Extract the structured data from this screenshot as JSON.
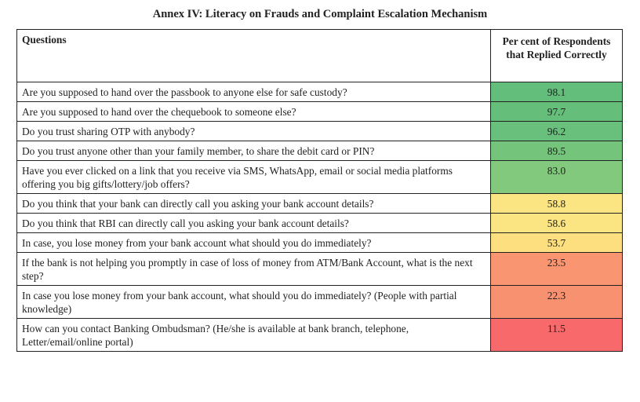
{
  "title": "Annex IV: Literacy on Frauds and Complaint Escalation Mechanism",
  "headers": {
    "question": "Questions",
    "percent": "Per cent of Respondents that Replied Correctly"
  },
  "rows": [
    {
      "q": "Are you supposed to hand over the passbook to anyone else for safe custody?",
      "v": "98.1",
      "color": "#63be7b"
    },
    {
      "q": "Are you supposed to hand over the chequebook to someone else?",
      "v": "97.7",
      "color": "#65bf7b"
    },
    {
      "q": "Do you trust sharing OTP with anybody?",
      "v": "96.2",
      "color": "#68c07c"
    },
    {
      "q": "Do you trust anyone other than your family member, to share the debit card or PIN?",
      "v": "89.5",
      "color": "#74c47c"
    },
    {
      "q": "Have you ever clicked on a link that you receive via SMS, WhatsApp, email or social media platforms offering you big gifts/lottery/job offers?",
      "v": "83.0",
      "color": "#82c87d"
    },
    {
      "q": "Do you think that your bank can directly call you asking your bank account details?",
      "v": "58.8",
      "color": "#fbe582"
    },
    {
      "q": "Do you think that RBI can directly call you asking your bank account details?",
      "v": "58.6",
      "color": "#fbe482"
    },
    {
      "q": "In case, you lose money from your bank account what should you do immediately?",
      "v": "53.7",
      "color": "#fddf80"
    },
    {
      "q": "If the bank is not helping you promptly in case of loss of money from ATM/Bank Account, what is the next step?",
      "v": "23.5",
      "color": "#f99570"
    },
    {
      "q": "In case you lose money from your bank account, what should you do immediately? (People with partial knowledge)",
      "v": "22.3",
      "color": "#f8916f"
    },
    {
      "q": "How can you contact Banking Ombudsman? (He/she is available at bank branch, telephone, Letter/email/online portal)",
      "v": "11.5",
      "color": "#f8696b"
    }
  ]
}
